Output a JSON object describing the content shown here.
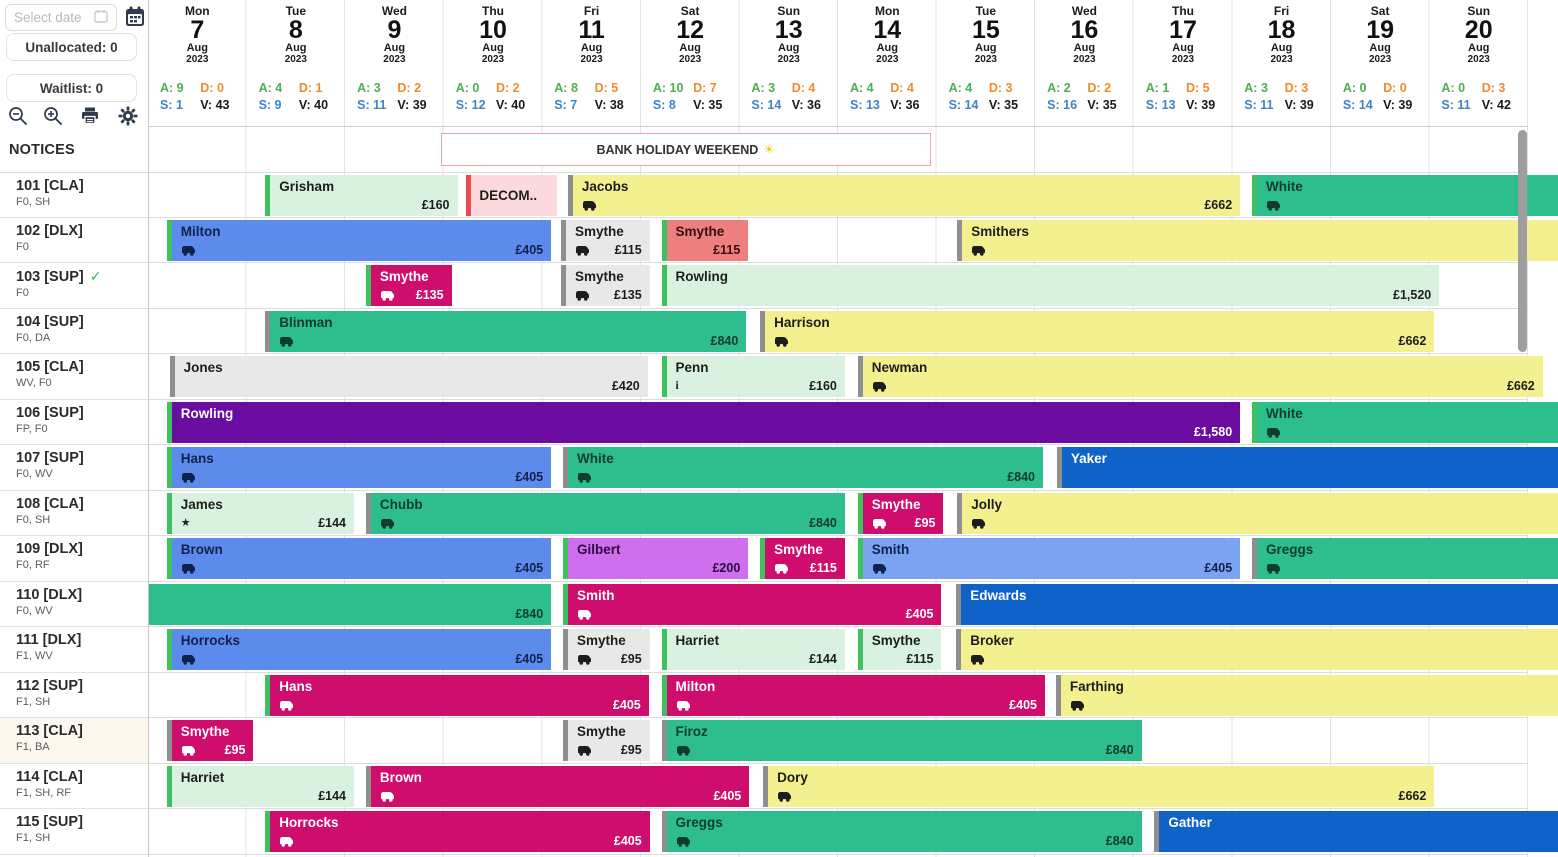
{
  "sidebar": {
    "date_picker_placeholder": "Select date",
    "unallocated_label": "Unallocated: 0",
    "waitlist_label": "Waitlist: 0",
    "notices_label": "NOTICES",
    "rooms": [
      {
        "name": "101 [CLA]",
        "features": "F0, SH"
      },
      {
        "name": "102 [DLX]",
        "features": "F0"
      },
      {
        "name": "103 [SUP]",
        "features": "F0",
        "checked": true
      },
      {
        "name": "104 [SUP]",
        "features": "F0, DA"
      },
      {
        "name": "105 [CLA]",
        "features": "WV, F0"
      },
      {
        "name": "106 [SUP]",
        "features": "FP, F0"
      },
      {
        "name": "107 [SUP]",
        "features": "F0, WV"
      },
      {
        "name": "108 [CLA]",
        "features": "F0, SH"
      },
      {
        "name": "109 [DLX]",
        "features": "F0, RF"
      },
      {
        "name": "110 [DLX]",
        "features": "F0, WV"
      },
      {
        "name": "111 [DLX]",
        "features": "F1, WV"
      },
      {
        "name": "112 [SUP]",
        "features": "F1, SH"
      },
      {
        "name": "113 [CLA]",
        "features": "F1, BA",
        "highlight": true
      },
      {
        "name": "114 [CLA]",
        "features": "F1, SH, RF"
      },
      {
        "name": "115 [SUP]",
        "features": "F1, SH"
      }
    ]
  },
  "stats_legend": {
    "a_color": "#4caf50",
    "d_color": "#ef8b2e",
    "s_color": "#3d85c8",
    "v_color": "#1a1a1a"
  },
  "calendar": {
    "days": [
      {
        "weekday": "Mon",
        "day": "7",
        "month": "Aug",
        "year": "2023",
        "a": "A: 9",
        "d": "D: 0",
        "s": "S: 1",
        "v": "V: 43"
      },
      {
        "weekday": "Tue",
        "day": "8",
        "month": "Aug",
        "year": "2023",
        "a": "A: 4",
        "d": "D: 1",
        "s": "S: 9",
        "v": "V: 40"
      },
      {
        "weekday": "Wed",
        "day": "9",
        "month": "Aug",
        "year": "2023",
        "a": "A: 3",
        "d": "D: 2",
        "s": "S: 11",
        "v": "V: 39"
      },
      {
        "weekday": "Thu",
        "day": "10",
        "month": "Aug",
        "year": "2023",
        "a": "A: 0",
        "d": "D: 2",
        "s": "S: 12",
        "v": "V: 40"
      },
      {
        "weekday": "Fri",
        "day": "11",
        "month": "Aug",
        "year": "2023",
        "a": "A: 8",
        "d": "D: 5",
        "s": "S: 7",
        "v": "V: 38"
      },
      {
        "weekday": "Sat",
        "day": "12",
        "month": "Aug",
        "year": "2023",
        "a": "A: 10",
        "d": "D: 7",
        "s": "S: 8",
        "v": "V: 35"
      },
      {
        "weekday": "Sun",
        "day": "13",
        "month": "Aug",
        "year": "2023",
        "a": "A: 3",
        "d": "D: 4",
        "s": "S: 14",
        "v": "V: 36"
      },
      {
        "weekday": "Mon",
        "day": "14",
        "month": "Aug",
        "year": "2023",
        "a": "A: 4",
        "d": "D: 4",
        "s": "S: 13",
        "v": "V: 36"
      },
      {
        "weekday": "Tue",
        "day": "15",
        "month": "Aug",
        "year": "2023",
        "a": "A: 4",
        "d": "D: 3",
        "s": "S: 14",
        "v": "V: 35"
      },
      {
        "weekday": "Wed",
        "day": "16",
        "month": "Aug",
        "year": "2023",
        "a": "A: 2",
        "d": "D: 2",
        "s": "S: 16",
        "v": "V: 35"
      },
      {
        "weekday": "Thu",
        "day": "17",
        "month": "Aug",
        "year": "2023",
        "a": "A: 1",
        "d": "D: 5",
        "s": "S: 13",
        "v": "V: 39"
      },
      {
        "weekday": "Fri",
        "day": "18",
        "month": "Aug",
        "year": "2023",
        "a": "A: 3",
        "d": "D: 3",
        "s": "S: 11",
        "v": "V: 39"
      },
      {
        "weekday": "Sat",
        "day": "19",
        "month": "Aug",
        "year": "2023",
        "a": "A: 0",
        "d": "D: 0",
        "s": "S: 14",
        "v": "V: 39"
      },
      {
        "weekday": "Sun",
        "day": "20",
        "month": "Aug",
        "year": "2023",
        "a": "A: 0",
        "d": "D: 3",
        "s": "S: 11",
        "v": "V: 42"
      }
    ],
    "notice": {
      "label": "BANK HOLIDAY WEEKEND",
      "emoji": "☀",
      "start": 2.97,
      "end": 7.94
    }
  },
  "palette": {
    "lightgreen": {
      "bg": "#d9f2df",
      "text": "#1d1d1d"
    },
    "pink": {
      "bg": "#fbd9dc",
      "text": "#1d1d1d"
    },
    "yellow": {
      "bg": "#f3f08f",
      "text": "#1d1d1d"
    },
    "teal": {
      "bg": "#2ebd8d",
      "text": "#103c2e"
    },
    "blue": {
      "bg": "#5d8beb",
      "text": "#10214d"
    },
    "lightblue": {
      "bg": "#7ba3f2",
      "text": "#10214d"
    },
    "gray": {
      "bg": "#e8e8e8",
      "text": "#1d1d1d"
    },
    "magenta": {
      "bg": "#cf0d6c",
      "text": "#ffffff"
    },
    "salmon": {
      "bg": "#ee7f7f",
      "text": "#3a0d0d"
    },
    "purple": {
      "bg": "#6b0ca1",
      "text": "#ffffff"
    },
    "darkblue": {
      "bg": "#0f63c8",
      "text": "#ffffff"
    },
    "violet": {
      "bg": "#cf6ff0",
      "text": "#2d0b3d"
    }
  },
  "edges": {
    "green": "#3fc15f",
    "gray": "#8f8f8f",
    "red": "#e84a52"
  },
  "bookings": [
    {
      "room": "101",
      "bars": [
        {
          "name": "Grisham",
          "price": "£160",
          "color": "lightgreen",
          "edge": "green",
          "start": 1.19,
          "end": 3.14
        },
        {
          "name": "DECOM..",
          "color": "pink",
          "edge": "red",
          "start": 3.23,
          "end": 4.15,
          "center": true
        },
        {
          "name": "Jacobs",
          "price": "£662",
          "color": "yellow",
          "edge": "gray",
          "icon": "car",
          "start": 4.26,
          "end": 11.08
        },
        {
          "name": "White",
          "color": "teal",
          "edge": "green",
          "icon": "car",
          "start": 11.2,
          "end": 14.3
        }
      ]
    },
    {
      "room": "102",
      "bars": [
        {
          "name": "Milton",
          "price": "£405",
          "color": "blue",
          "edge": "green",
          "icon": "car",
          "start": 0.19,
          "end": 4.09
        },
        {
          "name": "Smythe",
          "price": "£115",
          "color": "gray",
          "edge": "gray",
          "icon": "car",
          "start": 4.19,
          "end": 5.09
        },
        {
          "name": "Smythe",
          "price": "£115",
          "color": "salmon",
          "edge": "green",
          "start": 5.21,
          "end": 6.09
        },
        {
          "name": "Smithers",
          "color": "yellow",
          "edge": "gray",
          "icon": "car",
          "start": 8.21,
          "end": 14.3
        }
      ]
    },
    {
      "room": "103",
      "bars": [
        {
          "name": "Smythe",
          "price": "£135",
          "color": "magenta",
          "edge": "green",
          "icon": "car",
          "start": 2.21,
          "end": 3.08
        },
        {
          "name": "Smythe",
          "price": "£135",
          "color": "gray",
          "edge": "gray",
          "icon": "car",
          "start": 4.19,
          "end": 5.09
        },
        {
          "name": "Rowling",
          "price": "£1,520",
          "color": "lightgreen",
          "edge": "green",
          "start": 5.21,
          "end": 13.1
        }
      ]
    },
    {
      "room": "104",
      "bars": [
        {
          "name": "Blinman",
          "price": "£840",
          "color": "teal",
          "edge": "gray",
          "icon": "car",
          "start": 1.19,
          "end": 6.07
        },
        {
          "name": "Harrison",
          "price": "£662",
          "color": "yellow",
          "edge": "gray",
          "icon": "car",
          "start": 6.21,
          "end": 13.05
        }
      ]
    },
    {
      "room": "105",
      "bars": [
        {
          "name": "Jones",
          "price": "£420",
          "color": "gray",
          "edge": "gray",
          "start": 0.22,
          "end": 5.07
        },
        {
          "name": "Penn",
          "price": "£160",
          "color": "lightgreen",
          "edge": "green",
          "icon": "info",
          "start": 5.21,
          "end": 7.07
        },
        {
          "name": "Newman",
          "price": "£662",
          "color": "yellow",
          "edge": "gray",
          "icon": "car",
          "start": 7.2,
          "end": 14.15
        }
      ]
    },
    {
      "room": "106",
      "bars": [
        {
          "name": "Rowling",
          "price": "£1,580",
          "color": "purple",
          "edge": "green",
          "start": 0.19,
          "end": 11.08
        },
        {
          "name": "White",
          "color": "teal",
          "edge": "green",
          "icon": "car",
          "start": 11.2,
          "end": 14.3
        }
      ]
    },
    {
      "room": "107",
      "bars": [
        {
          "name": "Hans",
          "price": "£405",
          "color": "blue",
          "edge": "green",
          "icon": "car",
          "start": 0.19,
          "end": 4.09
        },
        {
          "name": "White",
          "price": "£840",
          "color": "teal",
          "edge": "gray",
          "icon": "car",
          "start": 4.21,
          "end": 9.08
        },
        {
          "name": "Yaker",
          "color": "darkblue",
          "edge": "gray",
          "start": 9.22,
          "end": 14.3
        }
      ]
    },
    {
      "room": "108",
      "bars": [
        {
          "name": "James",
          "price": "£144",
          "color": "lightgreen",
          "edge": "green",
          "icon": "star",
          "start": 0.19,
          "end": 2.09
        },
        {
          "name": "Chubb",
          "price": "£840",
          "color": "teal",
          "edge": "gray",
          "icon": "car",
          "start": 2.21,
          "end": 7.07
        },
        {
          "name": "Smythe",
          "price": "£95",
          "color": "magenta",
          "edge": "green",
          "icon": "car",
          "start": 7.2,
          "end": 8.07
        },
        {
          "name": "Jolly",
          "color": "yellow",
          "edge": "gray",
          "icon": "car",
          "start": 8.21,
          "end": 14.3
        }
      ]
    },
    {
      "room": "109",
      "bars": [
        {
          "name": "Brown",
          "price": "£405",
          "color": "blue",
          "edge": "green",
          "icon": "car",
          "start": 0.19,
          "end": 4.09
        },
        {
          "name": "Gilbert",
          "price": "£200",
          "color": "violet",
          "edge": "green",
          "start": 4.21,
          "end": 6.09
        },
        {
          "name": "Smythe",
          "price": "£115",
          "color": "magenta",
          "edge": "green",
          "icon": "car",
          "start": 6.21,
          "end": 7.07
        },
        {
          "name": "Smith",
          "price": "£405",
          "color": "lightblue",
          "edge": "green",
          "icon": "car",
          "start": 7.2,
          "end": 11.08
        },
        {
          "name": "Greggs",
          "color": "teal",
          "edge": "gray",
          "icon": "car",
          "start": 11.2,
          "end": 14.3
        }
      ]
    },
    {
      "room": "110",
      "bars": [
        {
          "price": "£840",
          "color": "teal",
          "start": 0.0,
          "end": 4.09
        },
        {
          "name": "Smith",
          "price": "£405",
          "color": "magenta",
          "edge": "green",
          "icon": "car",
          "start": 4.21,
          "end": 8.05
        },
        {
          "name": "Edwards",
          "color": "darkblue",
          "edge": "gray",
          "start": 8.2,
          "end": 14.3
        }
      ]
    },
    {
      "room": "111",
      "bars": [
        {
          "name": "Horrocks",
          "price": "£405",
          "color": "blue",
          "edge": "green",
          "icon": "car",
          "start": 0.19,
          "end": 4.09
        },
        {
          "name": "Smythe",
          "price": "£95",
          "color": "gray",
          "edge": "gray",
          "icon": "car",
          "start": 4.21,
          "end": 5.09
        },
        {
          "name": "Harriet",
          "price": "£144",
          "color": "lightgreen",
          "edge": "green",
          "start": 5.21,
          "end": 7.07
        },
        {
          "name": "Smythe",
          "price": "£115",
          "color": "lightgreen",
          "edge": "green",
          "start": 7.2,
          "end": 8.05
        },
        {
          "name": "Broker",
          "color": "yellow",
          "edge": "gray",
          "icon": "car",
          "start": 8.2,
          "end": 14.3
        }
      ]
    },
    {
      "room": "112",
      "bars": [
        {
          "name": "Hans",
          "price": "£405",
          "color": "magenta",
          "edge": "green",
          "icon": "car",
          "start": 1.19,
          "end": 5.08
        },
        {
          "name": "Milton",
          "price": "£405",
          "color": "magenta",
          "edge": "green",
          "icon": "car",
          "start": 5.21,
          "end": 9.1
        },
        {
          "name": "Farthing",
          "color": "yellow",
          "edge": "gray",
          "icon": "car",
          "start": 9.21,
          "end": 14.3
        }
      ]
    },
    {
      "room": "113",
      "bars": [
        {
          "name": "Smythe",
          "price": "£95",
          "color": "magenta",
          "edge": "gray",
          "icon": "car",
          "start": 0.19,
          "end": 1.07
        },
        {
          "name": "Smythe",
          "price": "£95",
          "color": "gray",
          "edge": "gray",
          "icon": "car",
          "start": 4.21,
          "end": 5.09
        },
        {
          "name": "Firoz",
          "price": "£840",
          "color": "teal",
          "edge": "gray",
          "icon": "car",
          "start": 5.21,
          "end": 10.08
        }
      ]
    },
    {
      "room": "114",
      "bars": [
        {
          "name": "Harriet",
          "price": "£144",
          "color": "lightgreen",
          "edge": "green",
          "start": 0.19,
          "end": 2.09
        },
        {
          "name": "Brown",
          "price": "£405",
          "color": "magenta",
          "edge": "gray",
          "icon": "car",
          "start": 2.21,
          "end": 6.1
        },
        {
          "name": "Dory",
          "price": "£662",
          "color": "yellow",
          "edge": "gray",
          "icon": "car",
          "start": 6.24,
          "end": 13.05
        }
      ]
    },
    {
      "room": "115",
      "bars": [
        {
          "name": "Horrocks",
          "price": "£405",
          "color": "magenta",
          "edge": "green",
          "icon": "car",
          "start": 1.19,
          "end": 5.09
        },
        {
          "name": "Greggs",
          "price": "£840",
          "color": "teal",
          "edge": "gray",
          "icon": "car",
          "start": 5.21,
          "end": 10.08
        },
        {
          "name": "Gather",
          "color": "darkblue",
          "edge": "gray",
          "start": 10.21,
          "end": 14.3
        }
      ]
    }
  ]
}
